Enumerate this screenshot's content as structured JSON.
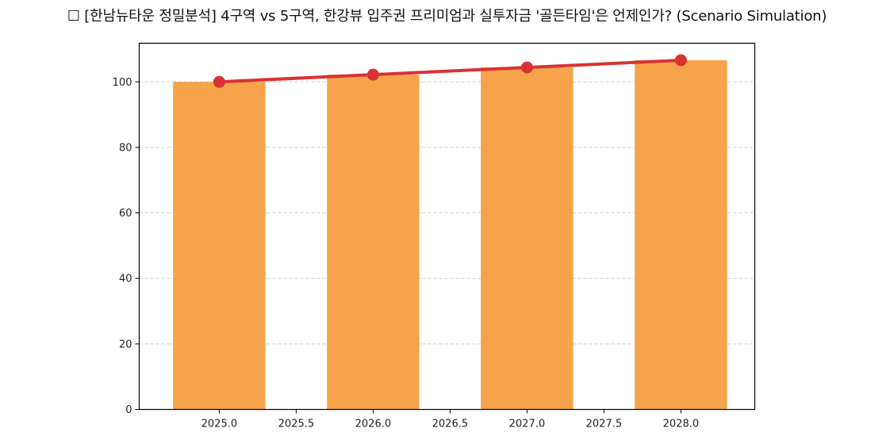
{
  "chart_data": {
    "type": "bar",
    "title": "☐ [한남뉴타운 정밀분석] 4구역 vs 5구역, 한강뷰 입주권 프리미엄과 실투자금 '골든타임'은 언제인가? (Scenario Simulation)",
    "xlabel": "",
    "ylabel": "",
    "x": [
      2025,
      2026,
      2027,
      2028
    ],
    "series": [
      {
        "name": "bars",
        "type": "bar",
        "color": "#F6A34B",
        "values": [
          100.0,
          102.2,
          104.4,
          106.6
        ]
      },
      {
        "name": "line",
        "type": "line",
        "color": "#D73333",
        "marker": "circle",
        "values": [
          100.0,
          102.2,
          104.4,
          106.6
        ]
      }
    ],
    "bar_width": 0.6,
    "xlim": [
      2024.48,
      2028.48
    ],
    "ylim": [
      0,
      111.8
    ],
    "xticks": [
      "2025.0",
      "2025.5",
      "2026.0",
      "2026.5",
      "2027.0",
      "2027.5",
      "2028.0"
    ],
    "yticks": [
      "0",
      "20",
      "40",
      "60",
      "80",
      "100"
    ],
    "grid": {
      "y": true,
      "x": false,
      "style": "dashed",
      "color": "#d0d0d0"
    },
    "legend": null
  }
}
